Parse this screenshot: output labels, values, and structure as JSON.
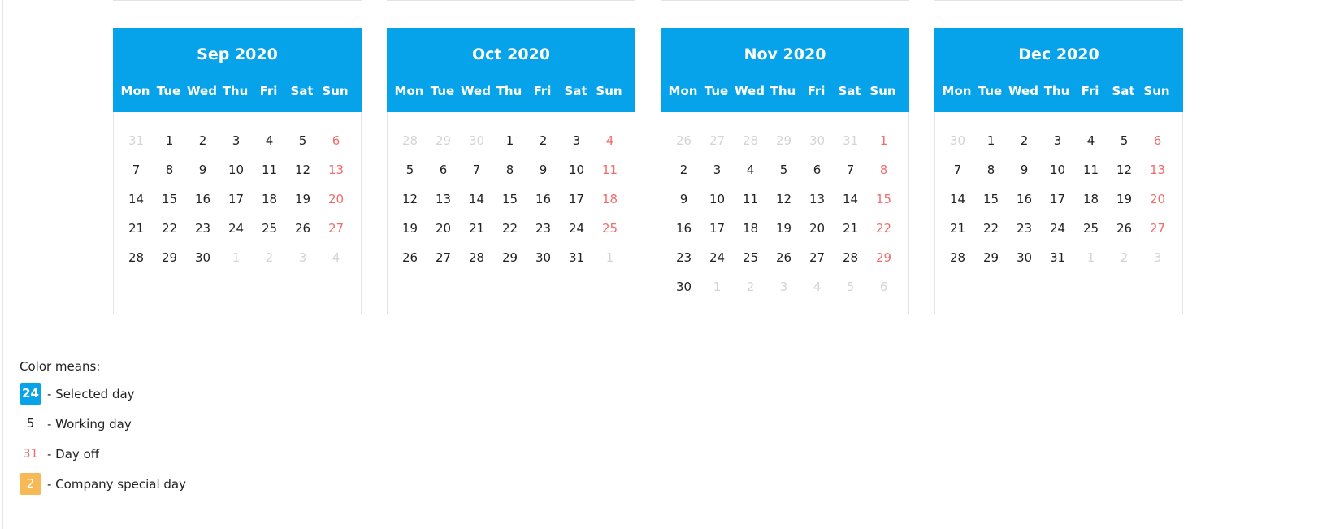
{
  "weekdays": [
    "Mon",
    "Tue",
    "Wed",
    "Thu",
    "Fri",
    "Sat",
    "Sun"
  ],
  "months": [
    {
      "title": "Sep 2020",
      "weeks": [
        [
          [
            "31",
            "muted"
          ],
          [
            "1",
            ""
          ],
          [
            "2",
            ""
          ],
          [
            "3",
            ""
          ],
          [
            "4",
            ""
          ],
          [
            "5",
            ""
          ],
          [
            "6",
            "off"
          ]
        ],
        [
          [
            "7",
            ""
          ],
          [
            "8",
            ""
          ],
          [
            "9",
            ""
          ],
          [
            "10",
            ""
          ],
          [
            "11",
            ""
          ],
          [
            "12",
            ""
          ],
          [
            "13",
            "off"
          ]
        ],
        [
          [
            "14",
            ""
          ],
          [
            "15",
            ""
          ],
          [
            "16",
            ""
          ],
          [
            "17",
            ""
          ],
          [
            "18",
            ""
          ],
          [
            "19",
            ""
          ],
          [
            "20",
            "off"
          ]
        ],
        [
          [
            "21",
            ""
          ],
          [
            "22",
            ""
          ],
          [
            "23",
            ""
          ],
          [
            "24",
            ""
          ],
          [
            "25",
            ""
          ],
          [
            "26",
            ""
          ],
          [
            "27",
            "off"
          ]
        ],
        [
          [
            "28",
            ""
          ],
          [
            "29",
            ""
          ],
          [
            "30",
            ""
          ],
          [
            "1",
            "muted"
          ],
          [
            "2",
            "muted"
          ],
          [
            "3",
            "muted"
          ],
          [
            "4",
            "muted"
          ]
        ]
      ]
    },
    {
      "title": "Oct 2020",
      "weeks": [
        [
          [
            "28",
            "muted"
          ],
          [
            "29",
            "muted"
          ],
          [
            "30",
            "muted"
          ],
          [
            "1",
            ""
          ],
          [
            "2",
            ""
          ],
          [
            "3",
            ""
          ],
          [
            "4",
            "off"
          ]
        ],
        [
          [
            "5",
            ""
          ],
          [
            "6",
            ""
          ],
          [
            "7",
            ""
          ],
          [
            "8",
            ""
          ],
          [
            "9",
            ""
          ],
          [
            "10",
            ""
          ],
          [
            "11",
            "off"
          ]
        ],
        [
          [
            "12",
            ""
          ],
          [
            "13",
            ""
          ],
          [
            "14",
            ""
          ],
          [
            "15",
            ""
          ],
          [
            "16",
            ""
          ],
          [
            "17",
            ""
          ],
          [
            "18",
            "off"
          ]
        ],
        [
          [
            "19",
            ""
          ],
          [
            "20",
            ""
          ],
          [
            "21",
            ""
          ],
          [
            "22",
            ""
          ],
          [
            "23",
            ""
          ],
          [
            "24",
            ""
          ],
          [
            "25",
            "off"
          ]
        ],
        [
          [
            "26",
            ""
          ],
          [
            "27",
            ""
          ],
          [
            "28",
            ""
          ],
          [
            "29",
            ""
          ],
          [
            "30",
            ""
          ],
          [
            "31",
            ""
          ],
          [
            "1",
            "muted"
          ]
        ]
      ]
    },
    {
      "title": "Nov 2020",
      "weeks": [
        [
          [
            "26",
            "muted"
          ],
          [
            "27",
            "muted"
          ],
          [
            "28",
            "muted"
          ],
          [
            "29",
            "muted"
          ],
          [
            "30",
            "muted"
          ],
          [
            "31",
            "muted"
          ],
          [
            "1",
            "off"
          ]
        ],
        [
          [
            "2",
            ""
          ],
          [
            "3",
            ""
          ],
          [
            "4",
            ""
          ],
          [
            "5",
            ""
          ],
          [
            "6",
            ""
          ],
          [
            "7",
            ""
          ],
          [
            "8",
            "off"
          ]
        ],
        [
          [
            "9",
            ""
          ],
          [
            "10",
            ""
          ],
          [
            "11",
            ""
          ],
          [
            "12",
            ""
          ],
          [
            "13",
            ""
          ],
          [
            "14",
            ""
          ],
          [
            "15",
            "off"
          ]
        ],
        [
          [
            "16",
            ""
          ],
          [
            "17",
            ""
          ],
          [
            "18",
            ""
          ],
          [
            "19",
            ""
          ],
          [
            "20",
            ""
          ],
          [
            "21",
            ""
          ],
          [
            "22",
            "off"
          ]
        ],
        [
          [
            "23",
            ""
          ],
          [
            "24",
            ""
          ],
          [
            "25",
            ""
          ],
          [
            "26",
            ""
          ],
          [
            "27",
            ""
          ],
          [
            "28",
            ""
          ],
          [
            "29",
            "off"
          ]
        ],
        [
          [
            "30",
            ""
          ],
          [
            "1",
            "muted"
          ],
          [
            "2",
            "muted"
          ],
          [
            "3",
            "muted"
          ],
          [
            "4",
            "muted"
          ],
          [
            "5",
            "muted"
          ],
          [
            "6",
            "muted"
          ]
        ]
      ]
    },
    {
      "title": "Dec 2020",
      "weeks": [
        [
          [
            "30",
            "muted"
          ],
          [
            "1",
            ""
          ],
          [
            "2",
            ""
          ],
          [
            "3",
            ""
          ],
          [
            "4",
            ""
          ],
          [
            "5",
            ""
          ],
          [
            "6",
            "off"
          ]
        ],
        [
          [
            "7",
            ""
          ],
          [
            "8",
            ""
          ],
          [
            "9",
            ""
          ],
          [
            "10",
            ""
          ],
          [
            "11",
            ""
          ],
          [
            "12",
            ""
          ],
          [
            "13",
            "off"
          ]
        ],
        [
          [
            "14",
            ""
          ],
          [
            "15",
            ""
          ],
          [
            "16",
            ""
          ],
          [
            "17",
            ""
          ],
          [
            "18",
            ""
          ],
          [
            "19",
            ""
          ],
          [
            "20",
            "off"
          ]
        ],
        [
          [
            "21",
            ""
          ],
          [
            "22",
            ""
          ],
          [
            "23",
            ""
          ],
          [
            "24",
            ""
          ],
          [
            "25",
            ""
          ],
          [
            "26",
            ""
          ],
          [
            "27",
            "off"
          ]
        ],
        [
          [
            "28",
            ""
          ],
          [
            "29",
            ""
          ],
          [
            "30",
            ""
          ],
          [
            "31",
            ""
          ],
          [
            "1",
            "muted"
          ],
          [
            "2",
            "muted"
          ],
          [
            "3",
            "muted"
          ]
        ]
      ]
    }
  ],
  "legend": {
    "title": "Color means:",
    "items": [
      {
        "sample": "24",
        "kind": "selected",
        "label": "- Selected day"
      },
      {
        "sample": "5",
        "kind": "working",
        "label": "- Working day"
      },
      {
        "sample": "31",
        "kind": "off",
        "label": "- Day off"
      },
      {
        "sample": "2",
        "kind": "special",
        "label": "- Company special day"
      }
    ]
  },
  "colors": {
    "header_blue": "#07a3ea",
    "day_off_red": "#ef6c6c",
    "special_orange": "#f7b955",
    "muted_gray": "#d4d4d4"
  }
}
